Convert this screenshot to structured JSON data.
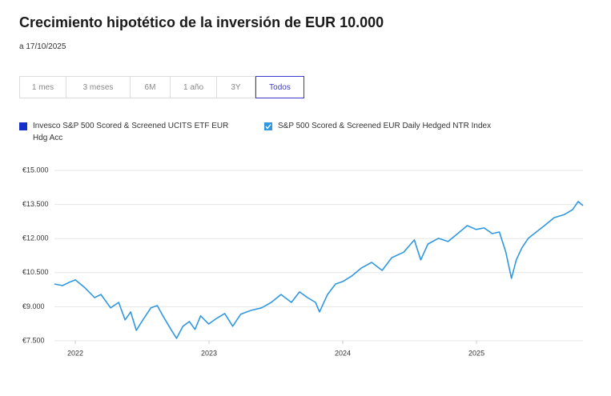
{
  "chart_data": {
    "type": "line",
    "title": "Crecimiento hipotético de la inversión de EUR 10.000",
    "subtitle": "a 17/10/2025",
    "range_buttons": [
      {
        "label": "1 mes",
        "selected": false
      },
      {
        "label": "3 meses",
        "selected": false
      },
      {
        "label": "6M",
        "selected": false
      },
      {
        "label": "1 año",
        "selected": false
      },
      {
        "label": "3Y",
        "selected": false
      },
      {
        "label": "Todos",
        "selected": true
      }
    ],
    "x": [
      2021.844,
      2021.904,
      2021.964,
      2022.0,
      2022.072,
      2022.144,
      2022.192,
      2022.264,
      2022.324,
      2022.372,
      2022.414,
      2022.456,
      2022.505,
      2022.565,
      2022.613,
      2022.655,
      2022.715,
      2022.757,
      2022.805,
      2022.853,
      2022.895,
      2022.937,
      2022.997,
      2023.057,
      2023.117,
      2023.177,
      2023.237,
      2023.315,
      2023.393,
      2023.465,
      2023.538,
      2023.616,
      2023.676,
      2023.736,
      2023.796,
      2023.826,
      2023.886,
      2023.946,
      2024.0,
      2024.066,
      2024.138,
      2024.216,
      2024.294,
      2024.366,
      2024.456,
      2024.535,
      2024.583,
      2024.637,
      2024.715,
      2024.787,
      2024.859,
      2024.931,
      2024.997,
      2025.057,
      2025.117,
      2025.171,
      2025.219,
      2025.261,
      2025.297,
      2025.339,
      2025.387,
      2025.447,
      2025.508,
      2025.58,
      2025.658,
      2025.718,
      2025.76,
      2025.796
    ],
    "series": [
      {
        "name": "Invesco S&P 500 Scored & Screened UCITS ETF EUR Hdg Acc",
        "color": "#1530c8",
        "visible": false
      },
      {
        "name": "S&P 500 Scored & Screened EUR Daily Hedged NTR Index",
        "color": "#2f98e0",
        "visible": true,
        "values": [
          10000,
          9930,
          10100,
          10180,
          9830,
          9400,
          9540,
          8950,
          9190,
          8420,
          8770,
          7960,
          8420,
          8950,
          9050,
          8600,
          8000,
          7610,
          8140,
          8350,
          8000,
          8600,
          8240,
          8490,
          8700,
          8140,
          8670,
          8840,
          8950,
          9190,
          9540,
          9190,
          9650,
          9400,
          9190,
          8770,
          9540,
          10000,
          10110,
          10350,
          10700,
          10950,
          10600,
          11160,
          11400,
          11940,
          11060,
          11760,
          12010,
          11870,
          12220,
          12570,
          12400,
          12470,
          12220,
          12290,
          11410,
          10250,
          11060,
          11590,
          12010,
          12290,
          12570,
          12920,
          13060,
          13270,
          13630,
          13450
        ]
      }
    ],
    "xlim": [
      2021.844,
      2025.796
    ],
    "xticks": [
      2022,
      2023,
      2024,
      2025
    ],
    "ylim": [
      7500,
      15000
    ],
    "yticks": [
      {
        "value": 7500,
        "label": "€7.500"
      },
      {
        "value": 9000,
        "label": "€9.000"
      },
      {
        "value": 10500,
        "label": "€10.500"
      },
      {
        "value": 12000,
        "label": "€12.000"
      },
      {
        "value": 13500,
        "label": "€13.500"
      },
      {
        "value": 15000,
        "label": "€15.000"
      }
    ],
    "grid": true
  }
}
